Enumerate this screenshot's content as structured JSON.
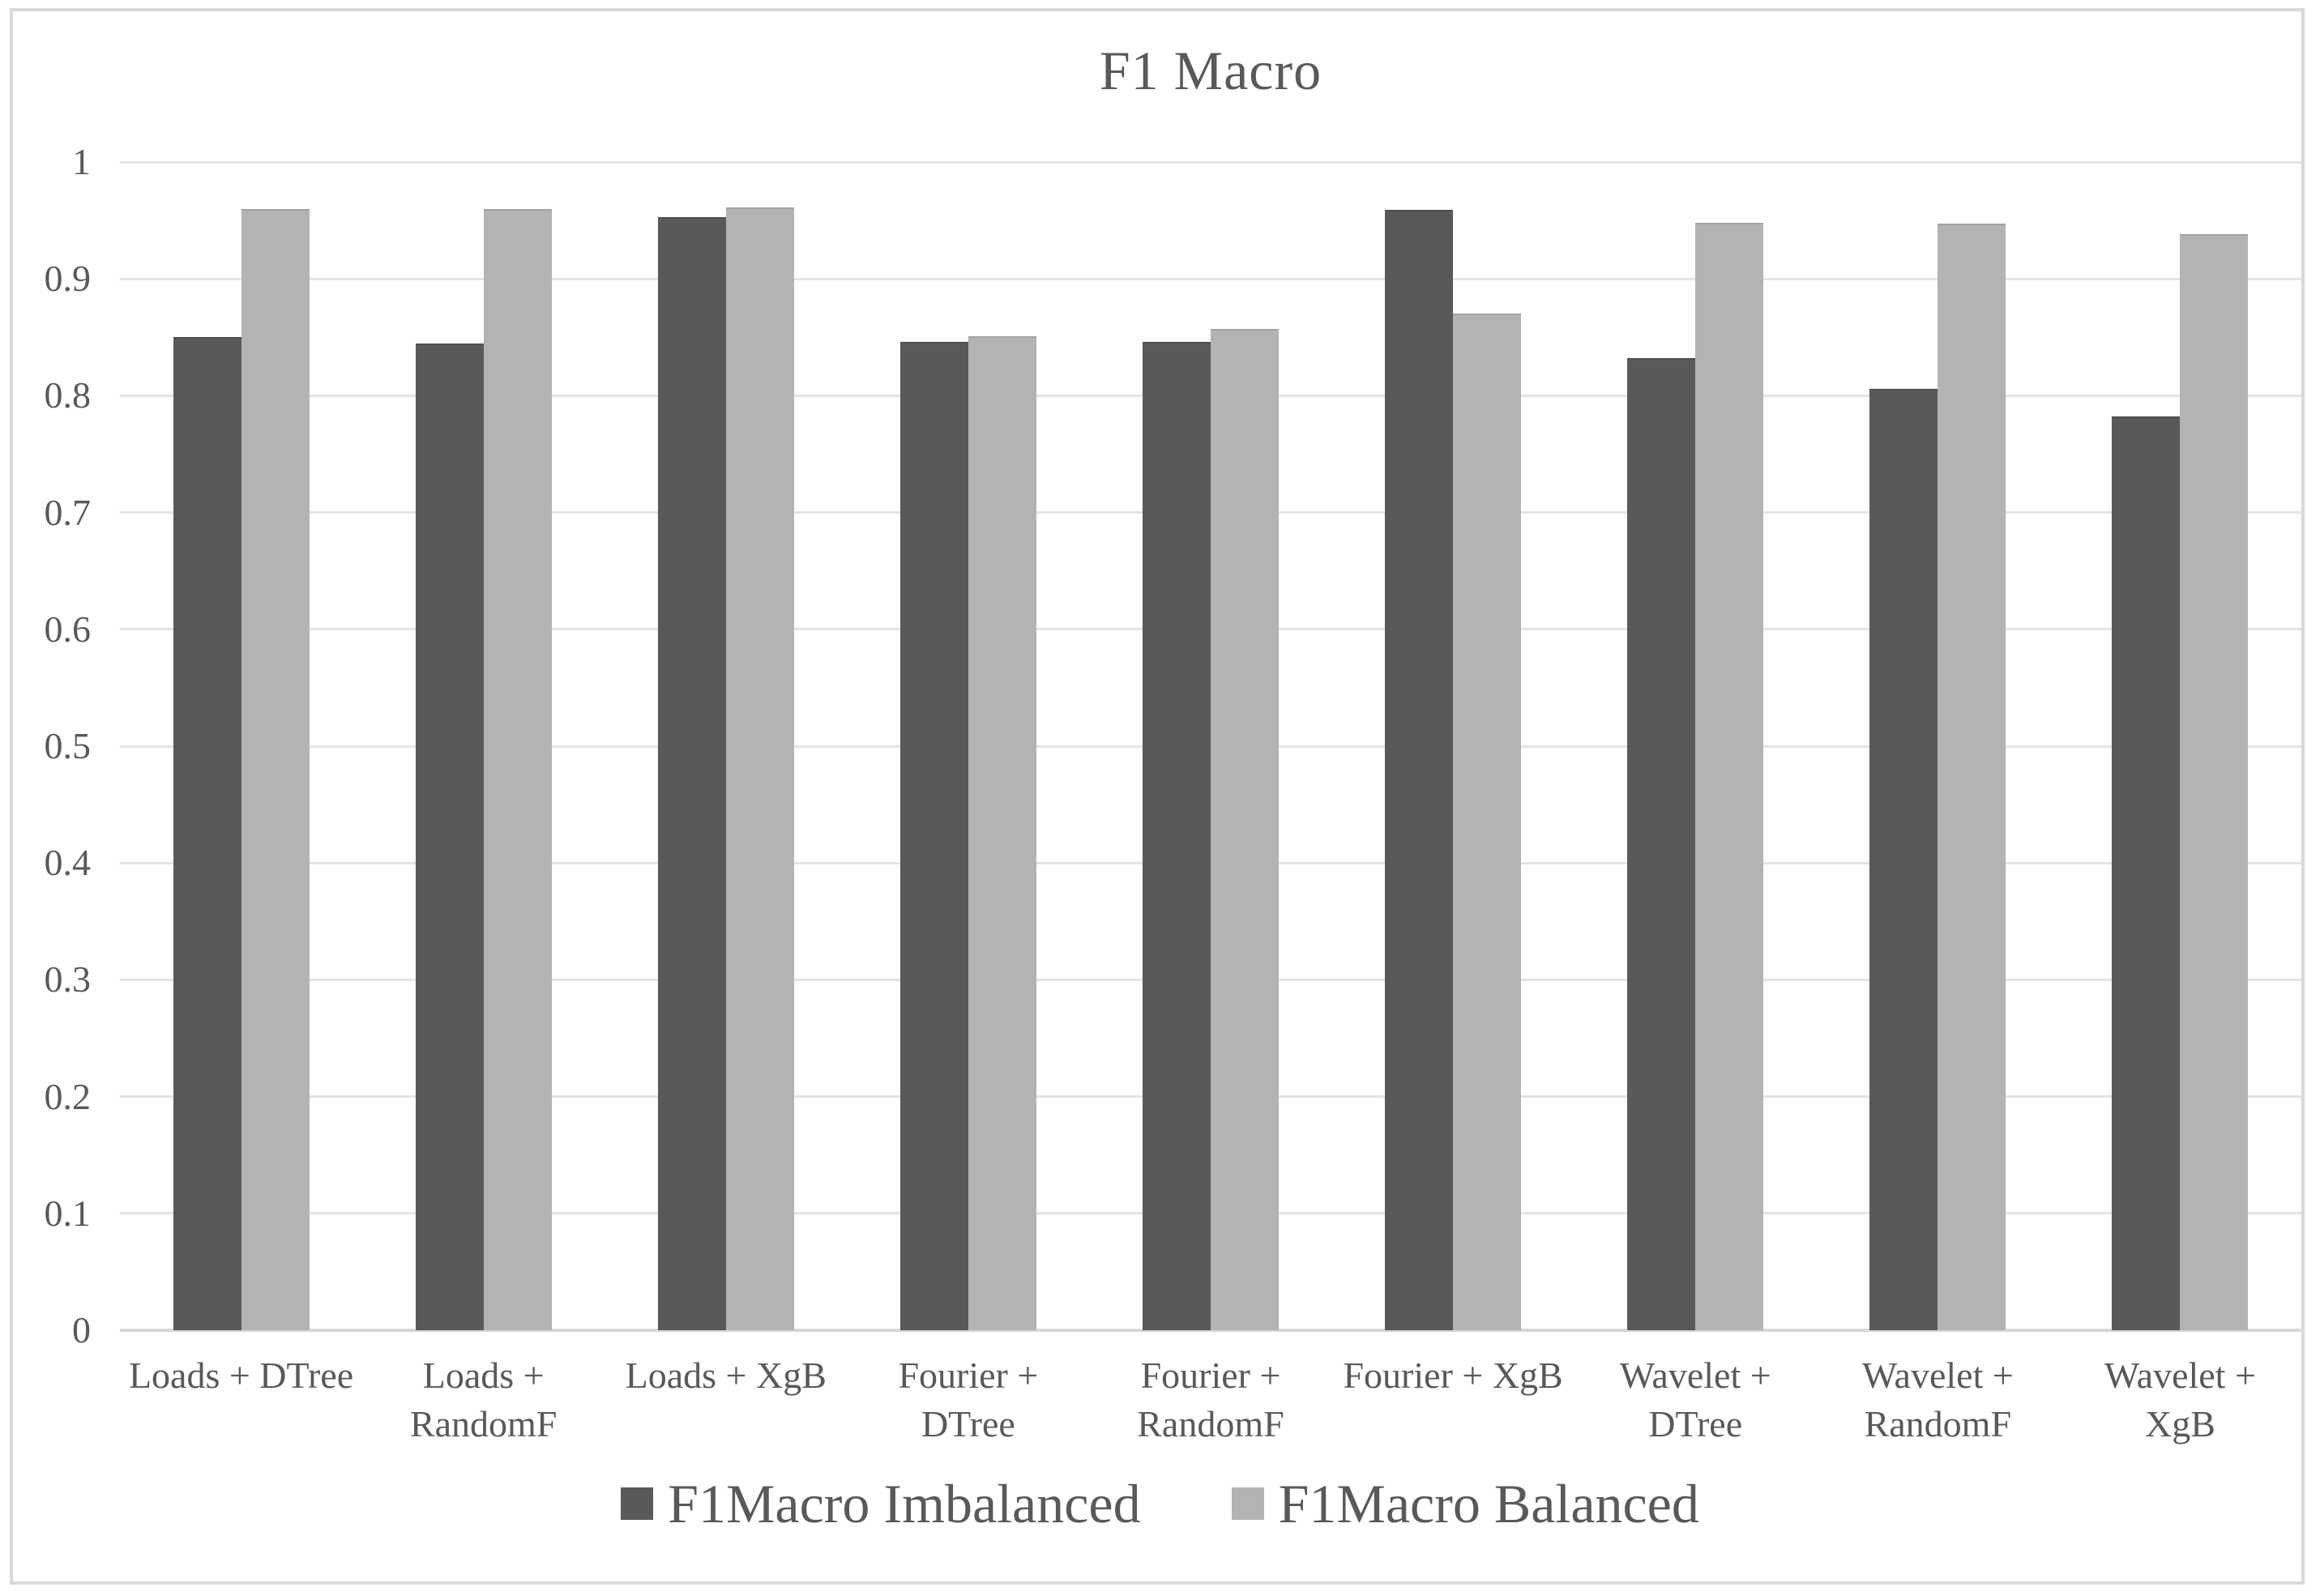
{
  "chart_data": {
    "type": "bar",
    "title": "F1 Macro",
    "xlabel": "",
    "ylabel": "",
    "categories": [
      "Loads + DTree",
      "Loads + RandomF",
      "Loads + XgB",
      "Fourier + DTree",
      "Fourier + RandomF",
      "Fourier + XgB",
      "Wavelet + DTree",
      "Wavelet + RandomF",
      "Wavelet + XgB"
    ],
    "category_label_lines": [
      [
        "Loads + DTree"
      ],
      [
        "Loads +",
        "RandomF"
      ],
      [
        "Loads + XgB"
      ],
      [
        "Fourier +",
        "DTree"
      ],
      [
        "Fourier +",
        "RandomF"
      ],
      [
        "Fourier + XgB"
      ],
      [
        "Wavelet +",
        "DTree"
      ],
      [
        "Wavelet +",
        "RandomF"
      ],
      [
        "Wavelet +",
        "XgB"
      ]
    ],
    "series": [
      {
        "name": "F1Macro Imbalanced",
        "color": "#595959",
        "values": [
          0.85,
          0.845,
          0.953,
          0.846,
          0.846,
          0.959,
          0.832,
          0.806,
          0.782
        ]
      },
      {
        "name": "F1Macro Balanced",
        "color": "#b3b3b3",
        "values": [
          0.96,
          0.96,
          0.961,
          0.851,
          0.857,
          0.87,
          0.948,
          0.947,
          0.938
        ]
      }
    ],
    "ylim": [
      0,
      1
    ],
    "ytick_labels": [
      "0",
      "0.1",
      "0.2",
      "0.3",
      "0.4",
      "0.5",
      "0.6",
      "0.7",
      "0.8",
      "0.9",
      "1"
    ],
    "ytick_values": [
      0,
      0.1,
      0.2,
      0.3,
      0.4,
      0.5,
      0.6,
      0.7,
      0.8,
      0.9,
      1
    ],
    "grid": "horizontal",
    "legend_position": "bottom"
  },
  "legend": {
    "items": [
      {
        "label": "F1Macro Imbalanced",
        "color": "#595959"
      },
      {
        "label": "F1Macro Balanced",
        "color": "#b3b3b3"
      }
    ]
  },
  "colors": {
    "text": "#595959",
    "gridline": "#e4e4e4",
    "axis_line": "#d7d7d7",
    "frame_border": "#d9d9d9",
    "background": "#ffffff"
  }
}
